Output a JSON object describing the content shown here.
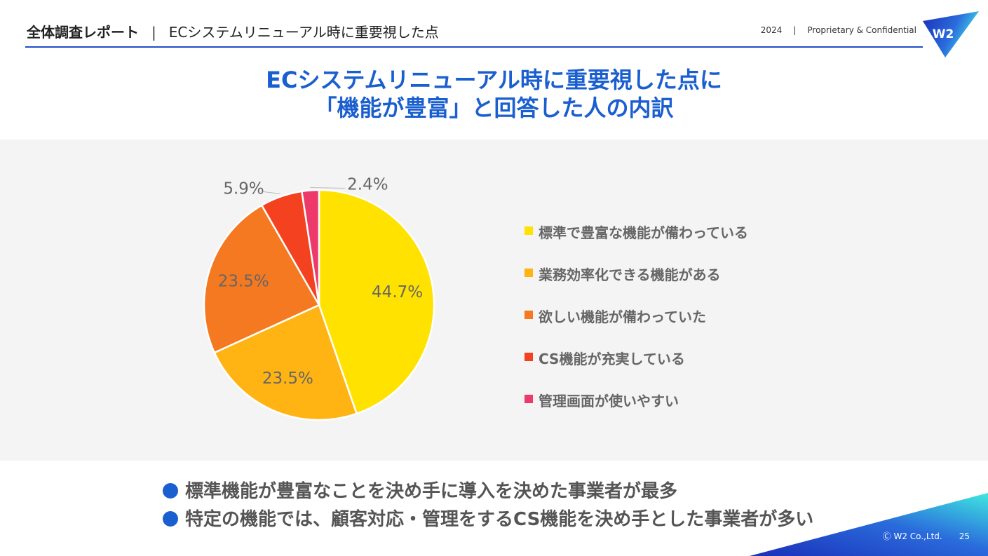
{
  "header": {
    "section": "全体調査レポート",
    "divider": "|",
    "subtitle": "ECシステムリニューアル時に重要視した点",
    "year": "2024",
    "divider2": "|",
    "confidential": "Proprietary & Confidential",
    "logo_text": "W2"
  },
  "title": {
    "line1": "ECシステムリニューアル時に重要視した点に",
    "line2": "「機能が豊富」と回答した人の内訳"
  },
  "chart_data": {
    "type": "pie",
    "title": "ECシステムリニューアル時に重要視した点に「機能が豊富」と回答した人の内訳",
    "legend_position": "right",
    "slices": [
      {
        "label": "標準で豊富な機能が備わっている",
        "value": 44.7,
        "display": "44.7%",
        "color": "#FFE200"
      },
      {
        "label": "業務効率化できる機能がある",
        "value": 23.5,
        "display": "23.5%",
        "color": "#FFB414"
      },
      {
        "label": "欲しい機能が備わっていた",
        "value": 23.5,
        "display": "23.5%",
        "color": "#F47920"
      },
      {
        "label": "CS機能が充実している",
        "value": 5.9,
        "display": "5.9%",
        "color": "#F4411F"
      },
      {
        "label": "管理画面が使いやすい",
        "value": 2.4,
        "display": "2.4%",
        "color": "#EE3A6A"
      }
    ]
  },
  "bullets": [
    "標準機能が豊富なことを決め手に導入を決めた事業者が最多",
    "特定の機能では、顧客対応・管理をするCS機能を決め手とした事業者が多い"
  ],
  "footer": {
    "copyright": "Ⓒ W2 Co.,Ltd.",
    "page": "25"
  },
  "colors": {
    "accent": "#1a5fd0",
    "panel_bg": "#f4f4f4"
  }
}
